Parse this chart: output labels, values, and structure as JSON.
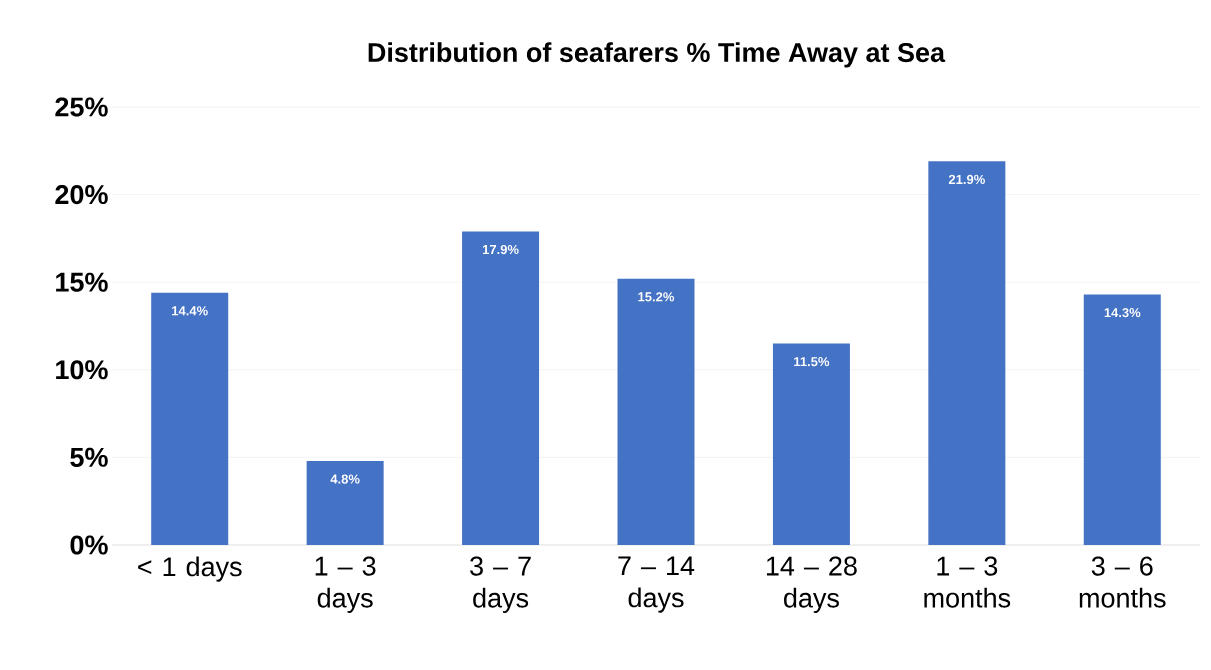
{
  "chart_data": {
    "type": "bar",
    "title": "Distribution of seafarers % Time Away at Sea",
    "categories": [
      "< 1 days",
      "1 – 3 days",
      "3 – 7 days",
      "7 – 14 days",
      "14 – 28 days",
      "1 – 3 months",
      "3 – 6 months"
    ],
    "values": [
      14.4,
      4.8,
      17.9,
      15.2,
      11.5,
      21.9,
      14.3
    ],
    "value_labels": [
      "14.4%",
      "4.8%",
      "17.9%",
      "15.2%",
      "11.5%",
      "21.9%",
      "14.3%"
    ],
    "color": "#4472c4",
    "ylim": [
      0,
      25
    ],
    "yticks": [
      {
        "value": 0,
        "label": "0%"
      },
      {
        "value": 5,
        "label": "5%"
      },
      {
        "value": 10,
        "label": "10%"
      },
      {
        "value": 15,
        "label": "15%"
      },
      {
        "value": 20,
        "label": "20%"
      },
      {
        "value": 25,
        "label": "25%"
      }
    ],
    "grid": "y"
  }
}
